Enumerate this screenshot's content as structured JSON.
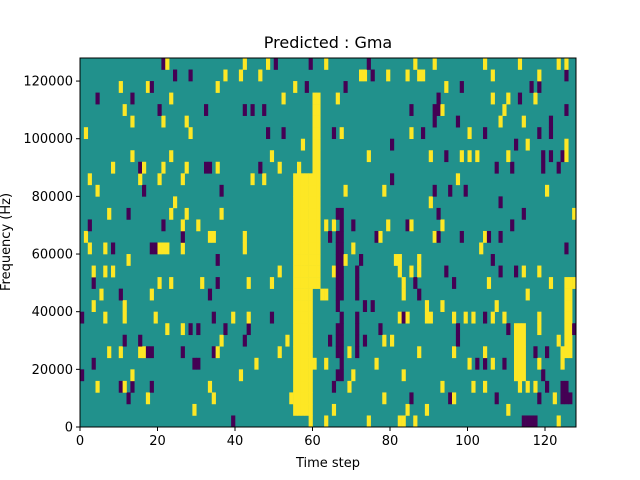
{
  "chart_data": {
    "type": "heatmap",
    "title": "Predicted : Gma",
    "xlabel": "Time step",
    "ylabel": "Frequency (Hz)",
    "xlim": [
      0,
      128
    ],
    "ylim": [
      0,
      128000
    ],
    "xticks": [
      0,
      20,
      40,
      60,
      80,
      100,
      120
    ],
    "yticks": [
      0,
      20000,
      40000,
      60000,
      80000,
      100000,
      120000
    ],
    "n_time_steps": 128,
    "n_freq_bins": 32,
    "value_levels": [
      -1,
      0,
      1
    ],
    "colormap": {
      "-1": "#440154",
      "0": "#21918c",
      "1": "#fde725"
    },
    "bands": [
      {
        "x0": 55,
        "x1": 60,
        "y0": 4000,
        "y1": 88000,
        "value": 1
      },
      {
        "x0": 60,
        "x1": 62,
        "y0": 48000,
        "y1": 116000,
        "value": 1
      },
      {
        "x0": 66,
        "x1": 68,
        "y0": 16000,
        "y1": 76000,
        "value": -1
      },
      {
        "x0": 71,
        "x1": 72,
        "y0": 24000,
        "y1": 56000,
        "value": -1
      },
      {
        "x0": 112,
        "x1": 115,
        "y0": 16000,
        "y1": 36000,
        "value": 1
      },
      {
        "x0": 20,
        "x1": 23,
        "y0": 60000,
        "y1": 64000,
        "value": 1
      },
      {
        "x0": 17,
        "x1": 20,
        "y0": 60000,
        "y1": 64000,
        "value": -1
      },
      {
        "x0": 38,
        "x1": 42,
        "y0": 0,
        "y1": 4000,
        "value": -1
      },
      {
        "x0": 82,
        "x1": 84,
        "y0": 0,
        "y1": 4000,
        "value": 1
      },
      {
        "x0": 114,
        "x1": 118,
        "y0": 0,
        "y1": 4000,
        "value": -1
      },
      {
        "x0": 124,
        "x1": 127,
        "y0": 8000,
        "y1": 16000,
        "value": -1
      },
      {
        "x0": 125,
        "x1": 127,
        "y0": 24000,
        "y1": 52000,
        "value": 1
      }
    ]
  }
}
